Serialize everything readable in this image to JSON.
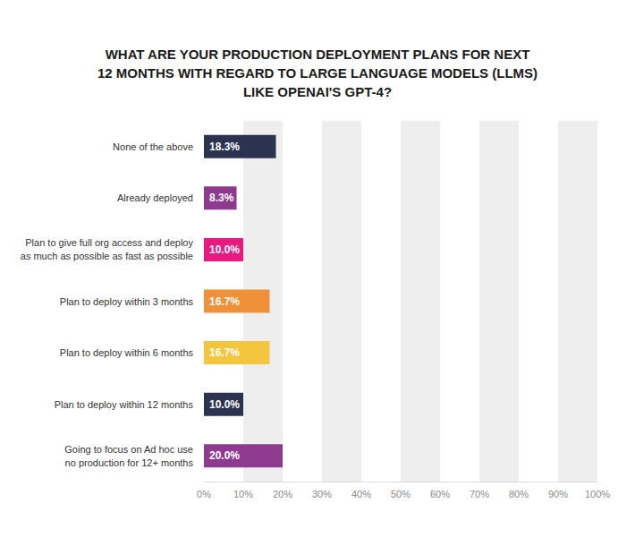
{
  "chart_data": {
    "type": "bar",
    "orientation": "horizontal",
    "title": "WHAT ARE YOUR PRODUCTION DEPLOYMENT PLANS FOR NEXT\n12 MONTHS WITH REGARD TO LARGE LANGUAGE MODELS (LLMS)\nLIKE OPENAI'S GPT-4?",
    "categories": [
      "None of the above",
      "Already deployed",
      "Plan to give full org access and deploy\nas much as possible as fast as possible",
      "Plan to deploy within 3 months",
      "Plan to deploy within 6 months",
      "Plan to deploy within 12 months",
      "Going to focus on Ad hoc use\nno production for 12+ months"
    ],
    "values": [
      18.3,
      8.3,
      10.0,
      16.7,
      16.7,
      10.0,
      20.0
    ],
    "value_labels": [
      "18.3%",
      "8.3%",
      "10.0%",
      "16.7%",
      "16.7%",
      "10.0%",
      "20.0%"
    ],
    "colors": [
      "#2b3350",
      "#8e3a8f",
      "#e8197f",
      "#f0913a",
      "#f4c63d",
      "#2b3350",
      "#8e3a8f"
    ],
    "data_labels": true,
    "grid": true,
    "xlim": [
      0,
      100
    ],
    "xticks": [
      {
        "value": 0,
        "label": "0%"
      },
      {
        "value": 10,
        "label": "10%"
      },
      {
        "value": 20,
        "label": "20%"
      },
      {
        "value": 30,
        "label": "30%"
      },
      {
        "value": 40,
        "label": "40%"
      },
      {
        "value": 50,
        "label": "50%"
      },
      {
        "value": 60,
        "label": "60%"
      },
      {
        "value": 70,
        "label": "70%"
      },
      {
        "value": 80,
        "label": "80%"
      },
      {
        "value": 90,
        "label": "90%"
      },
      {
        "value": 100,
        "label": "100%"
      }
    ]
  }
}
